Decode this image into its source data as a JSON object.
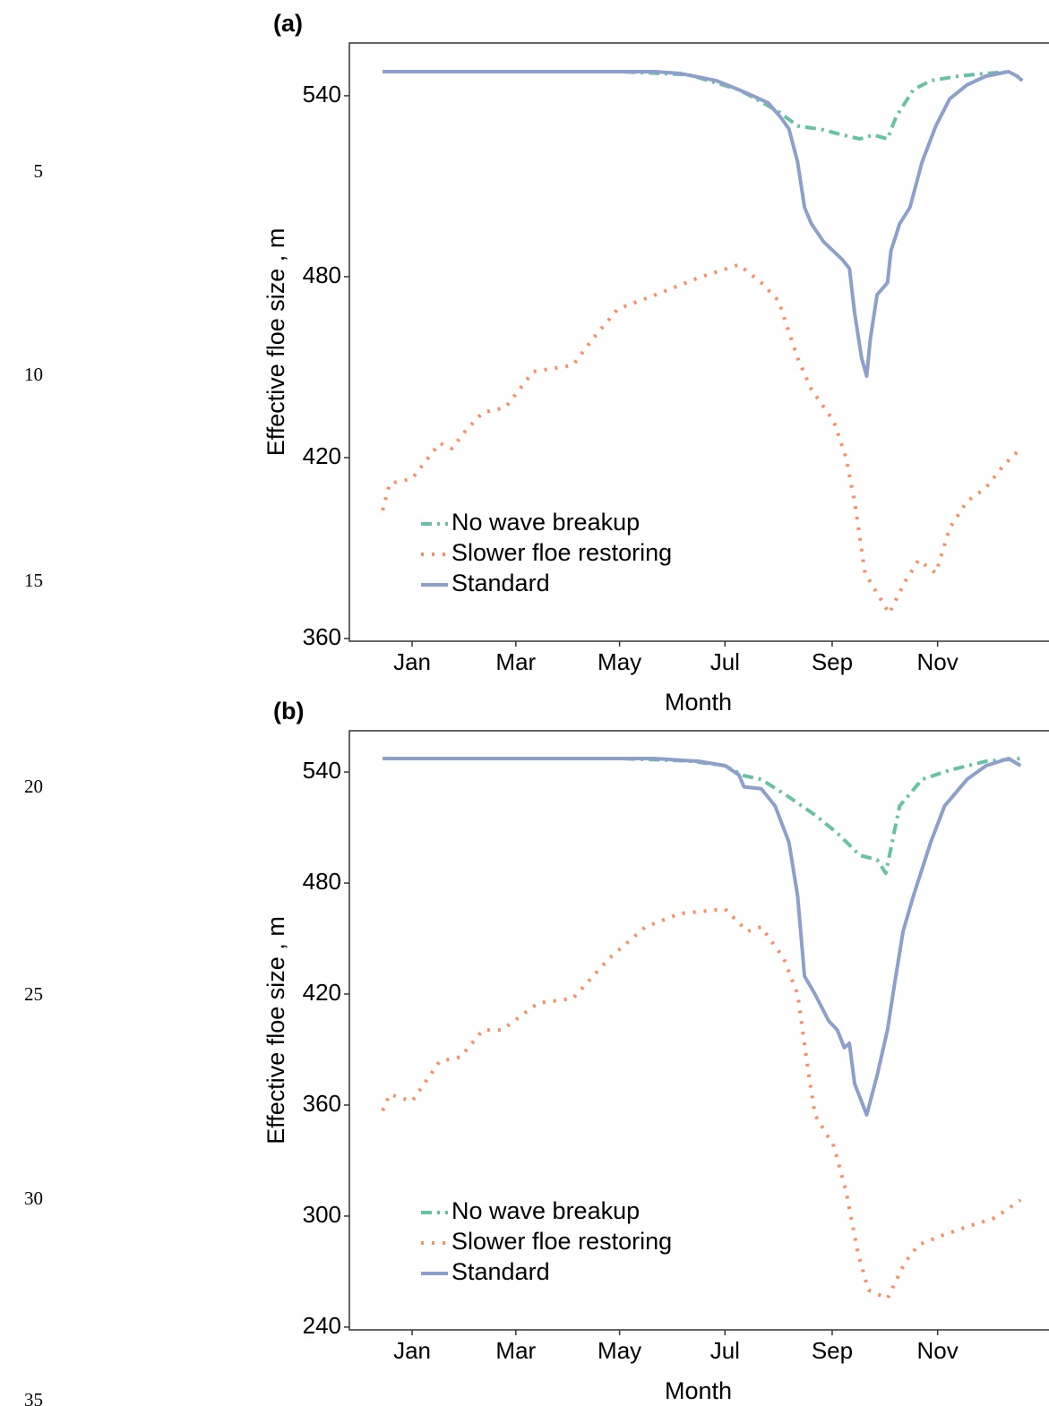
{
  "line_numbers": [
    "5",
    "10",
    "15",
    "20",
    "25",
    "30",
    "35"
  ],
  "chart_data": [
    {
      "type": "line",
      "panel_label": "(a)",
      "xlabel": "Month",
      "ylabel": "Effective floe size , m",
      "xlim": [
        -36.3,
        367.4
      ],
      "xticks": [
        {
          "value": 0,
          "label": "Jan"
        },
        {
          "value": 60,
          "label": "Mar"
        },
        {
          "value": 120,
          "label": "May"
        },
        {
          "value": 181,
          "label": "Jul"
        },
        {
          "value": 243,
          "label": "Sep"
        },
        {
          "value": 304,
          "label": "Nov"
        }
      ],
      "ylim": [
        359.1,
        557.5
      ],
      "yticks": [
        360,
        420,
        480,
        540
      ],
      "legend": "lower left",
      "series": [
        {
          "name": "No wave breakup",
          "color": "#66c2a5",
          "style": "dashdot",
          "x": [
            -17,
            0,
            40,
            80,
            120,
            160,
            189,
            202,
            212,
            223,
            238,
            249,
            259,
            267,
            275,
            280,
            290,
            300,
            316,
            332,
            347
          ],
          "values": [
            548,
            548,
            548,
            548,
            548,
            547,
            542,
            538,
            534.7,
            530,
            528.7,
            527,
            525.7,
            527,
            525.7,
            533,
            542,
            545,
            546.5,
            547.4,
            548
          ]
        },
        {
          "name": "Slower floe restoring",
          "color": "#fc8d62",
          "style": "dotted",
          "x": [
            -17,
            -13,
            0,
            16,
            23,
            31,
            41,
            54,
            70,
            93,
            104,
            119,
            140,
            166,
            189,
            202,
            212,
            223,
            231,
            244,
            251,
            256,
            262,
            276,
            285,
            293,
            303,
            311,
            321,
            332,
            342,
            352
          ],
          "values": [
            402.5,
            411.4,
            413,
            424.8,
            423,
            429,
            435,
            436.6,
            448.5,
            450.6,
            459,
            469.3,
            473.8,
            479.7,
            484,
            478,
            472,
            453,
            442.6,
            432,
            420,
            405.5,
            381.7,
            368.3,
            378.7,
            386,
            381.7,
            396.6,
            405.5,
            410,
            417.3,
            423
          ]
        },
        {
          "name": "Standard",
          "color": "#8da0cb",
          "style": "solid",
          "x": [
            -17,
            0,
            20,
            40,
            60,
            80,
            100,
            120,
            140,
            155,
            176,
            189,
            197,
            206,
            213,
            218,
            223,
            227,
            231,
            238,
            249,
            253,
            256,
            260,
            263,
            265,
            269,
            275,
            277,
            282,
            288,
            295,
            303,
            311,
            321,
            332,
            345,
            350,
            353
          ],
          "values": [
            548,
            548,
            548,
            548,
            548,
            548,
            548,
            548,
            548,
            547.4,
            545,
            542,
            540,
            537.6,
            533,
            529,
            518,
            503,
            497.5,
            491.6,
            485.6,
            482.7,
            468,
            453,
            447,
            459,
            474,
            478,
            488.6,
            497.5,
            503,
            518,
            530,
            539,
            543.6,
            546.5,
            548,
            546.5,
            545
          ]
        }
      ]
    },
    {
      "type": "line",
      "panel_label": "(b)",
      "xlabel": "Month",
      "ylabel": "Effective floe size , m",
      "xlim": [
        -36.3,
        367.4
      ],
      "xticks": [
        {
          "value": 0,
          "label": "Jan"
        },
        {
          "value": 60,
          "label": "Mar"
        },
        {
          "value": 120,
          "label": "May"
        },
        {
          "value": 181,
          "label": "Jul"
        },
        {
          "value": 243,
          "label": "Sep"
        },
        {
          "value": 304,
          "label": "Nov"
        }
      ],
      "ylim": [
        238.5,
        562.3
      ],
      "yticks": [
        240,
        300,
        360,
        420,
        480,
        540
      ],
      "legend": "lower left",
      "series": [
        {
          "name": "No wave breakup",
          "color": "#66c2a5",
          "style": "dashdot",
          "x": [
            -17,
            0,
            40,
            80,
            120,
            160,
            181,
            192,
            202,
            218,
            233,
            246,
            259,
            269,
            274,
            282,
            295,
            311,
            332,
            352
          ],
          "values": [
            547.3,
            547.3,
            547.3,
            547.3,
            547.3,
            546,
            543.4,
            538,
            536,
            526.5,
            516.8,
            507,
            495,
            492.6,
            485.3,
            521.6,
            536,
            541,
            545.8,
            547.3
          ]
        },
        {
          "name": "Slower floe restoring",
          "color": "#fc8d62",
          "style": "dotted",
          "x": [
            -17,
            -13,
            0,
            16,
            28,
            41,
            52,
            73,
            93,
            114,
            135,
            155,
            181,
            194,
            202,
            215,
            223,
            228,
            233,
            244,
            251,
            258,
            264,
            275,
            285,
            293,
            306,
            321,
            337,
            352
          ],
          "values": [
            357,
            365.8,
            362,
            383.7,
            386,
            400.6,
            400.6,
            415.2,
            417.6,
            439.3,
            456.3,
            463.5,
            466,
            453.9,
            456.3,
            439.3,
            420,
            386,
            354.7,
            337.7,
            313.5,
            279.6,
            260,
            255.5,
            274.8,
            284.5,
            289.3,
            294.2,
            299,
            308.7
          ]
        },
        {
          "name": "Standard",
          "color": "#8da0cb",
          "style": "solid",
          "x": [
            -17,
            0,
            20,
            40,
            60,
            80,
            100,
            120,
            140,
            166,
            181,
            189,
            192,
            202,
            210,
            218,
            223,
            227,
            233,
            241,
            246,
            250,
            253,
            256,
            263,
            269,
            275,
            279,
            284,
            290,
            300,
            308,
            321,
            332,
            345,
            352
          ],
          "values": [
            547.3,
            547.3,
            547.3,
            547.3,
            547.3,
            547.3,
            547.3,
            547.3,
            547.3,
            545.8,
            543.4,
            538.5,
            532,
            531,
            521.6,
            502,
            473,
            429.7,
            420,
            405.5,
            400.6,
            391,
            393.4,
            371.6,
            354.7,
            376,
            400.6,
            424.8,
            453.9,
            473,
            502,
            521.6,
            536,
            543.4,
            547.3,
            543.4
          ]
        }
      ]
    }
  ]
}
